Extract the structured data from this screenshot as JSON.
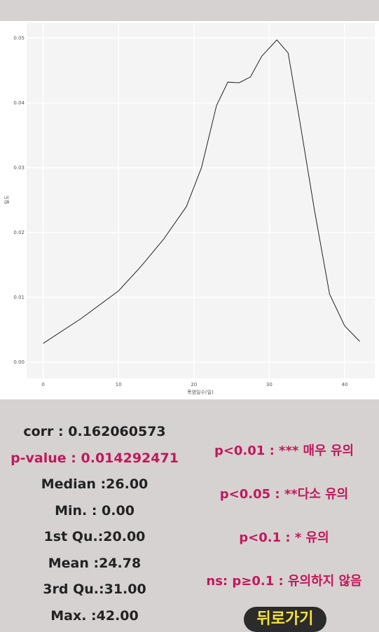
{
  "chart_data": {
    "type": "line",
    "x_label": "폭염일수(일)",
    "y_label": "밀도",
    "x": [
      0,
      5,
      10,
      13,
      16,
      19,
      21,
      23,
      24.5,
      26,
      27.5,
      29,
      31,
      32.5,
      34,
      36,
      38,
      40,
      42
    ],
    "series": [
      {
        "color": "#222222",
        "values": [
          0.0029,
          0.0067,
          0.011,
          0.0148,
          0.019,
          0.024,
          0.03,
          0.0396,
          0.0432,
          0.0431,
          0.044,
          0.0472,
          0.0497,
          0.0477,
          0.0375,
          0.0234,
          0.0105,
          0.0056,
          0.0032
        ]
      }
    ],
    "xlim": [
      -2.2,
      44
    ],
    "xticks": [
      0,
      10,
      20,
      30,
      40
    ],
    "ylim": [
      -0.0025,
      0.0523
    ],
    "yticks": [
      {
        "value": 0,
        "label": "0.00"
      },
      {
        "value": 0.01,
        "label": "0.01"
      },
      {
        "value": 0.02,
        "label": "0.02"
      },
      {
        "value": 0.03,
        "label": "0.03"
      },
      {
        "value": 0.04,
        "label": "0.04"
      },
      {
        "value": 0.05,
        "label": "0.05"
      }
    ],
    "grid": true
  },
  "stats": {
    "corr": "corr : 0.162060573",
    "p_value": "p-value : 0.014292471",
    "summary": [
      "Median :26.00",
      "Min.   : 0.00",
      "1st Qu.:20.00",
      "Mean   :24.78",
      "3rd Qu.:31.00",
      "Max.   :42.00"
    ]
  },
  "legend": [
    "p<0.01 : *** 매우 유의",
    "p<0.05 : **다소 유의",
    "p<0.1 : * 유의",
    "ns: p≥0.1 : 유의하지 않음"
  ],
  "button": "뒤로가기"
}
